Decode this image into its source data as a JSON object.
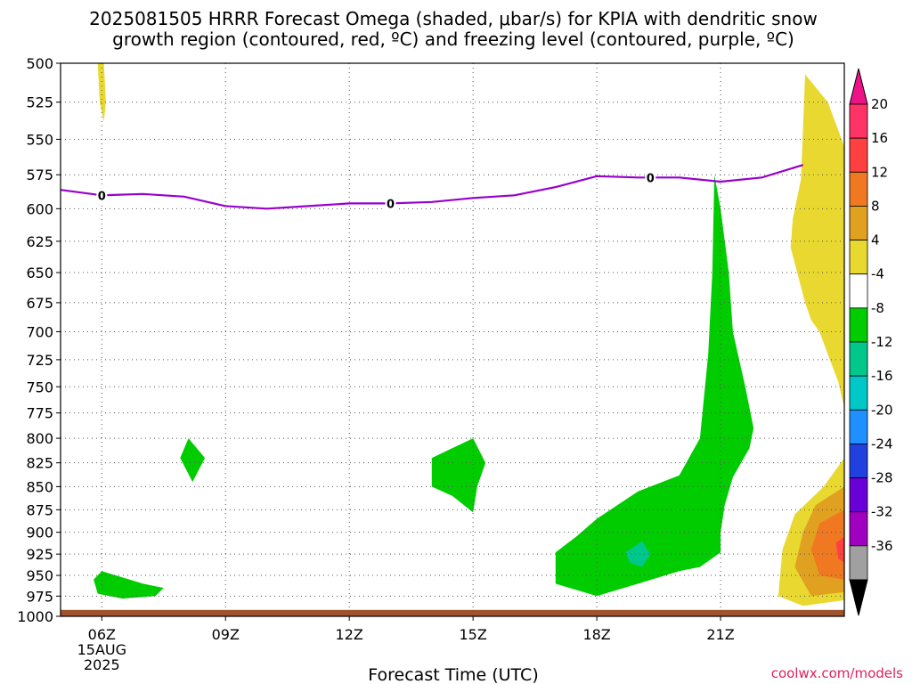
{
  "chart_data": {
    "type": "heatmap",
    "title_line1": "2025081505 HRRR Forecast Omega (shaded, μbar/s) for KPIA with dendritic snow",
    "title_line2": "growth region (contoured, red, ºC) and freezing level (contoured, purple, ºC)",
    "xlabel": "Forecast Time (UTC)",
    "credit": "coolwx.com/models",
    "x_range_hours": [
      5,
      24
    ],
    "y_range_hpa": [
      500,
      1000
    ],
    "y_scale": "log-pressure",
    "y_ticks": [
      500,
      525,
      550,
      575,
      600,
      625,
      650,
      675,
      700,
      725,
      750,
      775,
      800,
      825,
      850,
      875,
      900,
      925,
      950,
      975,
      1000
    ],
    "x_ticks": [
      {
        "hour": 6,
        "label": "06Z",
        "sub1": "15AUG",
        "sub2": "2025"
      },
      {
        "hour": 9,
        "label": "09Z"
      },
      {
        "hour": 12,
        "label": "12Z"
      },
      {
        "hour": 15,
        "label": "15Z"
      },
      {
        "hour": 18,
        "label": "18Z"
      },
      {
        "hour": 21,
        "label": "21Z"
      }
    ],
    "grid": "dotted",
    "colorbar": {
      "placement": "right",
      "labels": [
        "20",
        "16",
        "12",
        "8",
        "4",
        "-4",
        "-8",
        "-12",
        "-16",
        "-20",
        "-24",
        "-28",
        "-32",
        "-36"
      ],
      "colors": [
        "#ff3366",
        "#ff4040",
        "#f07820",
        "#e0a020",
        "#e8d830",
        "#ffffff",
        "#00cc00",
        "#00c88c",
        "#00c8c8",
        "#1e90ff",
        "#2040e0",
        "#6a00d8",
        "#a000c0",
        "#a0a0a0"
      ],
      "over_color": "#ee1289",
      "under_color": "#000000"
    },
    "freezing_level": {
      "color": "#9900cc",
      "label": "0",
      "points": [
        [
          5,
          586
        ],
        [
          6,
          590
        ],
        [
          7,
          589
        ],
        [
          8,
          591
        ],
        [
          9,
          598
        ],
        [
          10,
          600
        ],
        [
          11,
          598
        ],
        [
          12,
          596
        ],
        [
          13,
          596
        ],
        [
          14,
          595
        ],
        [
          15,
          592
        ],
        [
          16,
          590
        ],
        [
          17,
          584
        ],
        [
          18,
          576
        ],
        [
          19,
          577
        ],
        [
          20,
          577
        ],
        [
          21,
          580
        ],
        [
          22,
          577
        ],
        [
          23,
          568
        ]
      ],
      "label_hours": [
        6,
        13,
        19.3
      ]
    },
    "omega_regions": [
      {
        "name": "yellow-top-left",
        "color": "#e8d830",
        "points": [
          [
            5.9,
            500
          ],
          [
            6.05,
            500
          ],
          [
            6.1,
            525
          ],
          [
            6.05,
            538
          ],
          [
            5.95,
            525
          ]
        ]
      },
      {
        "name": "green-850",
        "color": "#00cc00",
        "points": [
          [
            8.1,
            800
          ],
          [
            8.5,
            820
          ],
          [
            8.2,
            845
          ],
          [
            7.9,
            820
          ]
        ]
      },
      {
        "name": "green-960",
        "color": "#00cc00",
        "points": [
          [
            5.8,
            955
          ],
          [
            6,
            945
          ],
          [
            7,
            960
          ],
          [
            7.5,
            965
          ],
          [
            7.3,
            975
          ],
          [
            6.5,
            978
          ],
          [
            5.9,
            972
          ]
        ]
      },
      {
        "name": "green-830",
        "color": "#00cc00",
        "points": [
          [
            14,
            820
          ],
          [
            15,
            800
          ],
          [
            15.3,
            825
          ],
          [
            15.1,
            850
          ],
          [
            15,
            878
          ],
          [
            14.5,
            860
          ],
          [
            14,
            850
          ]
        ]
      },
      {
        "name": "green-main",
        "color": "#00cc00",
        "points": [
          [
            17,
            923
          ],
          [
            17.5,
            905
          ],
          [
            18,
            885
          ],
          [
            19,
            855
          ],
          [
            20,
            838
          ],
          [
            20.5,
            800
          ],
          [
            20.7,
            720
          ],
          [
            20.8,
            650
          ],
          [
            20.85,
            575
          ],
          [
            21,
            600
          ],
          [
            21.2,
            650
          ],
          [
            21.3,
            700
          ],
          [
            21.6,
            750
          ],
          [
            21.8,
            790
          ],
          [
            21.7,
            810
          ],
          [
            21.3,
            840
          ],
          [
            21.1,
            870
          ],
          [
            21,
            900
          ],
          [
            21,
            923
          ],
          [
            20.5,
            940
          ],
          [
            20,
            945
          ],
          [
            19,
            960
          ],
          [
            18,
            975
          ],
          [
            17,
            960
          ],
          [
            17,
            940
          ]
        ]
      },
      {
        "name": "teal-925",
        "color": "#00c88c",
        "points": [
          [
            18.7,
            923
          ],
          [
            19.1,
            910
          ],
          [
            19.3,
            925
          ],
          [
            19.1,
            940
          ],
          [
            18.8,
            935
          ]
        ]
      },
      {
        "name": "yellow-right",
        "color": "#e8d830",
        "points": [
          [
            23.05,
            507
          ],
          [
            23.6,
            525
          ],
          [
            24,
            555
          ],
          [
            24,
            770
          ],
          [
            23.85,
            745
          ],
          [
            23.6,
            720
          ],
          [
            23.4,
            700
          ],
          [
            23.2,
            690
          ],
          [
            23.05,
            675
          ],
          [
            22.7,
            630
          ],
          [
            22.75,
            608
          ],
          [
            22.95,
            578
          ]
        ]
      },
      {
        "name": "yellow-bottom-right",
        "color": "#e8d830",
        "points": [
          [
            24,
            820
          ],
          [
            23.5,
            850
          ],
          [
            22.8,
            880
          ],
          [
            22.5,
            920
          ],
          [
            22.4,
            975
          ],
          [
            23,
            987
          ],
          [
            24,
            980
          ]
        ]
      },
      {
        "name": "orange-lt-bottom-right",
        "color": "#e0a020",
        "points": [
          [
            24,
            850
          ],
          [
            23.3,
            870
          ],
          [
            23,
            900
          ],
          [
            22.8,
            940
          ],
          [
            23.2,
            975
          ],
          [
            24,
            970
          ]
        ]
      },
      {
        "name": "orange-bottom-right",
        "color": "#f07820",
        "points": [
          [
            24,
            875
          ],
          [
            23.4,
            890
          ],
          [
            23.2,
            920
          ],
          [
            23.4,
            950
          ],
          [
            24,
            955
          ]
        ]
      },
      {
        "name": "red-bottom-right",
        "color": "#ff4040",
        "points": [
          [
            24,
            905
          ],
          [
            23.8,
            912
          ],
          [
            23.85,
            930
          ],
          [
            24,
            935
          ]
        ]
      }
    ],
    "terrain": {
      "color": "#a0522d",
      "top_hpa": 992
    }
  }
}
